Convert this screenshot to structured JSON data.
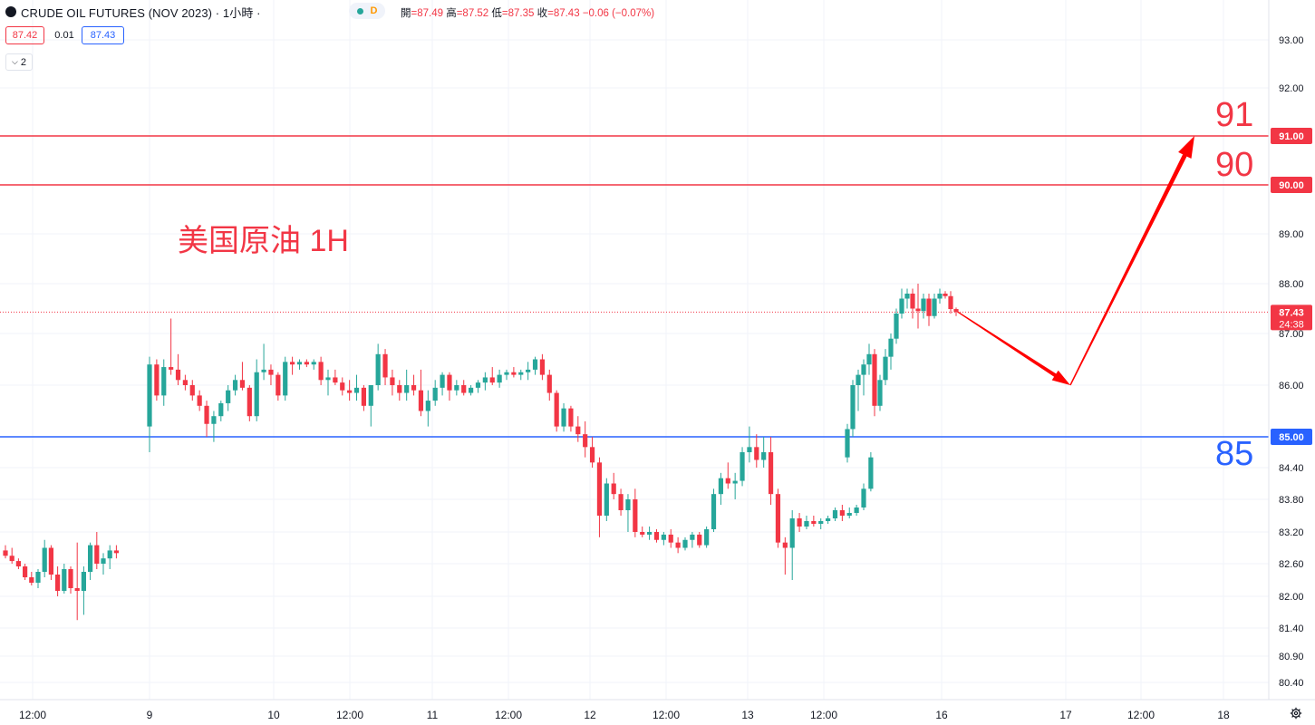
{
  "header": {
    "title": "CRUDE OIL FUTURES (NOV 2023) · 1小時 ·",
    "source_badge": "D",
    "ohlc": {
      "open_label": "開",
      "open": "=87.49",
      "high_label": "高",
      "high": "=87.52",
      "low_label": "低",
      "low": "=87.35",
      "close_label": "收",
      "close": "=87.43",
      "change": "−0.06 (−0.07%)"
    }
  },
  "trade": {
    "bid": "87.42",
    "spread": "0.01",
    "ask": "87.43"
  },
  "indicators_toggle": {
    "count": "2",
    "icon": "chevron-down-icon"
  },
  "annotations": {
    "title": "美国原油 1H",
    "level_91": "91",
    "level_90": "90",
    "level_85": "85"
  },
  "colors": {
    "up": "#26a69a",
    "down": "#f23645",
    "resistance": "#f23645",
    "support": "#2962ff",
    "arrow": "#ff0000",
    "grid": "#f0f3fa",
    "axis_text": "#131722"
  },
  "chart_data": {
    "type": "candlestick",
    "timeframe": "1H",
    "x_ticks": [
      "12:00",
      "9",
      "10",
      "12:00",
      "11",
      "12:00",
      "12",
      "12:00",
      "13",
      "12:00",
      "16",
      "17",
      "12:00",
      "18"
    ],
    "y_ticks": [
      "93.00",
      "92.00",
      "91.00",
      "90.00",
      "89.00",
      "88.00",
      "87.00",
      "86.00",
      "85.00",
      "84.40",
      "83.80",
      "83.20",
      "82.60",
      "82.00",
      "81.40",
      "80.90",
      "80.40"
    ],
    "y_range": [
      80.4,
      93.0
    ],
    "last_price": {
      "value": 87.43,
      "label": "87.43",
      "countdown": "24:38"
    },
    "horizontal_lines": [
      {
        "value": 91.0,
        "label": "91.00",
        "color": "#f23645"
      },
      {
        "value": 90.0,
        "label": "90.00",
        "color": "#f23645"
      },
      {
        "value": 85.0,
        "label": "85.00",
        "color": "#2962ff"
      }
    ],
    "projection_path": [
      87.43,
      86.0,
      91.0
    ],
    "ohlc": [
      [
        82.85,
        82.95,
        82.7,
        82.75
      ],
      [
        82.75,
        82.9,
        82.6,
        82.65
      ],
      [
        82.65,
        82.7,
        82.5,
        82.55
      ],
      [
        82.55,
        82.6,
        82.3,
        82.35
      ],
      [
        82.35,
        82.45,
        82.2,
        82.25
      ],
      [
        82.25,
        82.5,
        82.15,
        82.45
      ],
      [
        82.45,
        83.05,
        82.35,
        82.9
      ],
      [
        82.9,
        82.95,
        82.3,
        82.4
      ],
      [
        82.4,
        82.55,
        82.0,
        82.1
      ],
      [
        82.1,
        82.6,
        82.05,
        82.5
      ],
      [
        82.5,
        82.55,
        82.05,
        82.15
      ],
      [
        82.15,
        83.0,
        81.55,
        82.1
      ],
      [
        82.1,
        82.55,
        81.65,
        82.45
      ],
      [
        82.45,
        83.0,
        82.3,
        82.95
      ],
      [
        82.95,
        83.2,
        82.5,
        82.6
      ],
      [
        82.6,
        82.8,
        82.4,
        82.7
      ],
      [
        82.7,
        82.95,
        82.5,
        82.85
      ],
      [
        82.85,
        82.95,
        82.7,
        82.8
      ],
      [
        85.2,
        86.55,
        84.7,
        86.4
      ],
      [
        86.4,
        86.5,
        85.7,
        85.8
      ],
      [
        85.8,
        86.5,
        85.6,
        86.35
      ],
      [
        86.35,
        87.3,
        86.2,
        86.3
      ],
      [
        86.3,
        86.6,
        86.0,
        86.1
      ],
      [
        86.1,
        86.2,
        85.9,
        86.0
      ],
      [
        86.0,
        86.1,
        85.7,
        85.8
      ],
      [
        85.8,
        85.9,
        85.5,
        85.6
      ],
      [
        85.6,
        85.7,
        85.0,
        85.25
      ],
      [
        85.25,
        85.5,
        84.9,
        85.4
      ],
      [
        85.4,
        85.7,
        85.3,
        85.65
      ],
      [
        85.65,
        86.0,
        85.5,
        85.9
      ],
      [
        85.9,
        86.2,
        85.8,
        86.1
      ],
      [
        86.1,
        86.45,
        85.9,
        85.95
      ],
      [
        85.95,
        86.0,
        85.3,
        85.4
      ],
      [
        85.4,
        86.5,
        85.3,
        86.25
      ],
      [
        86.25,
        86.8,
        86.1,
        86.3
      ],
      [
        86.3,
        86.4,
        86.0,
        86.2
      ],
      [
        86.2,
        86.25,
        85.7,
        85.8
      ],
      [
        85.8,
        86.55,
        85.7,
        86.45
      ],
      [
        86.45,
        86.55,
        86.2,
        86.4
      ],
      [
        86.4,
        86.5,
        86.3,
        86.45
      ],
      [
        86.45,
        86.5,
        86.35,
        86.4
      ],
      [
        86.4,
        86.5,
        86.3,
        86.45
      ],
      [
        86.45,
        86.55,
        86.0,
        86.1
      ],
      [
        86.1,
        86.3,
        85.8,
        86.15
      ],
      [
        86.15,
        86.3,
        86.0,
        86.05
      ],
      [
        86.05,
        86.15,
        85.8,
        85.9
      ],
      [
        85.9,
        86.1,
        85.7,
        85.85
      ],
      [
        85.85,
        86.2,
        85.7,
        85.95
      ],
      [
        85.95,
        86.0,
        85.5,
        85.6
      ],
      [
        85.6,
        86.0,
        85.2,
        86.0
      ],
      [
        86.0,
        86.8,
        85.9,
        86.6
      ],
      [
        86.6,
        86.7,
        86.0,
        86.15
      ],
      [
        86.15,
        86.3,
        85.8,
        86.0
      ],
      [
        86.0,
        86.1,
        85.7,
        85.85
      ],
      [
        85.85,
        86.3,
        85.7,
        86.0
      ],
      [
        86.0,
        86.2,
        85.8,
        85.9
      ],
      [
        85.9,
        86.3,
        85.4,
        85.5
      ],
      [
        85.5,
        85.9,
        85.2,
        85.7
      ],
      [
        85.7,
        86.1,
        85.6,
        85.95
      ],
      [
        85.95,
        86.25,
        85.8,
        86.2
      ],
      [
        86.2,
        86.25,
        85.7,
        85.9
      ],
      [
        85.9,
        86.1,
        85.8,
        86.0
      ],
      [
        86.0,
        86.1,
        85.8,
        85.85
      ],
      [
        85.85,
        86.0,
        85.8,
        85.95
      ],
      [
        85.95,
        86.1,
        85.85,
        86.05
      ],
      [
        86.05,
        86.25,
        85.9,
        86.15
      ],
      [
        86.15,
        86.35,
        86.0,
        86.05
      ],
      [
        86.05,
        86.3,
        85.95,
        86.2
      ],
      [
        86.2,
        86.3,
        86.1,
        86.25
      ],
      [
        86.25,
        86.35,
        86.15,
        86.2
      ],
      [
        86.2,
        86.3,
        86.1,
        86.25
      ],
      [
        86.25,
        86.45,
        86.1,
        86.3
      ],
      [
        86.3,
        86.55,
        86.2,
        86.5
      ],
      [
        86.5,
        86.6,
        86.1,
        86.2
      ],
      [
        86.2,
        86.3,
        85.7,
        85.85
      ],
      [
        85.85,
        85.9,
        85.1,
        85.2
      ],
      [
        85.2,
        85.65,
        85.1,
        85.55
      ],
      [
        85.55,
        85.6,
        85.1,
        85.2
      ],
      [
        85.2,
        85.4,
        84.9,
        85.05
      ],
      [
        85.05,
        85.3,
        84.6,
        84.8
      ],
      [
        84.8,
        85.0,
        84.4,
        84.5
      ],
      [
        84.5,
        84.6,
        83.1,
        83.5
      ],
      [
        83.5,
        84.2,
        83.4,
        84.1
      ],
      [
        84.1,
        84.3,
        83.8,
        83.9
      ],
      [
        83.9,
        84.0,
        83.5,
        83.6
      ],
      [
        83.6,
        83.9,
        83.2,
        83.8
      ],
      [
        83.8,
        84.0,
        83.1,
        83.2
      ],
      [
        83.2,
        83.3,
        83.1,
        83.15
      ],
      [
        83.15,
        83.3,
        83.05,
        83.2
      ],
      [
        83.2,
        83.25,
        83.0,
        83.05
      ],
      [
        83.05,
        83.2,
        82.95,
        83.15
      ],
      [
        83.15,
        83.25,
        82.9,
        83.0
      ],
      [
        83.0,
        83.1,
        82.8,
        82.9
      ],
      [
        82.9,
        83.1,
        82.85,
        83.05
      ],
      [
        83.05,
        83.2,
        82.9,
        83.15
      ],
      [
        83.15,
        83.2,
        82.9,
        82.95
      ],
      [
        82.95,
        83.3,
        82.9,
        83.25
      ],
      [
        83.25,
        84.0,
        83.2,
        83.9
      ],
      [
        83.9,
        84.3,
        83.7,
        84.2
      ],
      [
        84.2,
        84.5,
        84.0,
        84.1
      ],
      [
        84.1,
        84.3,
        83.8,
        84.15
      ],
      [
        84.15,
        84.8,
        84.05,
        84.7
      ],
      [
        84.7,
        85.2,
        84.5,
        84.8
      ],
      [
        84.8,
        85.05,
        84.4,
        84.55
      ],
      [
        84.55,
        85.0,
        84.4,
        84.7
      ],
      [
        84.7,
        85.0,
        83.7,
        83.9
      ],
      [
        83.9,
        84.0,
        82.9,
        83.0
      ],
      [
        83.0,
        83.1,
        82.4,
        82.9
      ],
      [
        82.9,
        83.6,
        82.3,
        83.45
      ],
      [
        83.45,
        83.55,
        83.2,
        83.3
      ],
      [
        83.3,
        83.5,
        83.25,
        83.4
      ],
      [
        83.4,
        83.5,
        83.3,
        83.35
      ],
      [
        83.35,
        83.45,
        83.25,
        83.4
      ],
      [
        83.4,
        83.5,
        83.35,
        83.45
      ],
      [
        83.45,
        83.65,
        83.4,
        83.6
      ],
      [
        83.6,
        83.7,
        83.4,
        83.5
      ],
      [
        83.5,
        83.65,
        83.45,
        83.55
      ],
      [
        83.55,
        83.7,
        83.5,
        83.65
      ],
      [
        83.65,
        84.1,
        83.6,
        84.0
      ],
      [
        84.0,
        84.7,
        83.95,
        84.6
      ],
      [
        84.6,
        85.25,
        84.5,
        85.15
      ],
      [
        85.15,
        86.1,
        85.0,
        86.0
      ],
      [
        86.0,
        86.3,
        85.5,
        86.2
      ],
      [
        86.2,
        86.5,
        85.8,
        86.4
      ],
      [
        86.4,
        86.8,
        86.2,
        86.6
      ],
      [
        86.6,
        86.7,
        85.4,
        85.6
      ],
      [
        85.6,
        86.2,
        85.5,
        86.1
      ],
      [
        86.1,
        86.7,
        86.0,
        86.55
      ],
      [
        86.55,
        87.0,
        86.3,
        86.9
      ],
      [
        86.9,
        87.5,
        86.8,
        87.4
      ],
      [
        87.4,
        87.9,
        87.3,
        87.7
      ],
      [
        87.7,
        87.9,
        87.5,
        87.8
      ],
      [
        87.8,
        87.9,
        87.3,
        87.5
      ],
      [
        87.5,
        88.0,
        87.1,
        87.45
      ],
      [
        87.45,
        87.8,
        87.3,
        87.7
      ],
      [
        87.7,
        87.8,
        87.15,
        87.35
      ],
      [
        87.35,
        87.8,
        87.3,
        87.7
      ],
      [
        87.7,
        87.9,
        87.6,
        87.8
      ],
      [
        87.8,
        87.85,
        87.7,
        87.75
      ],
      [
        87.75,
        87.85,
        87.4,
        87.49
      ],
      [
        87.49,
        87.52,
        87.35,
        87.43
      ]
    ]
  }
}
